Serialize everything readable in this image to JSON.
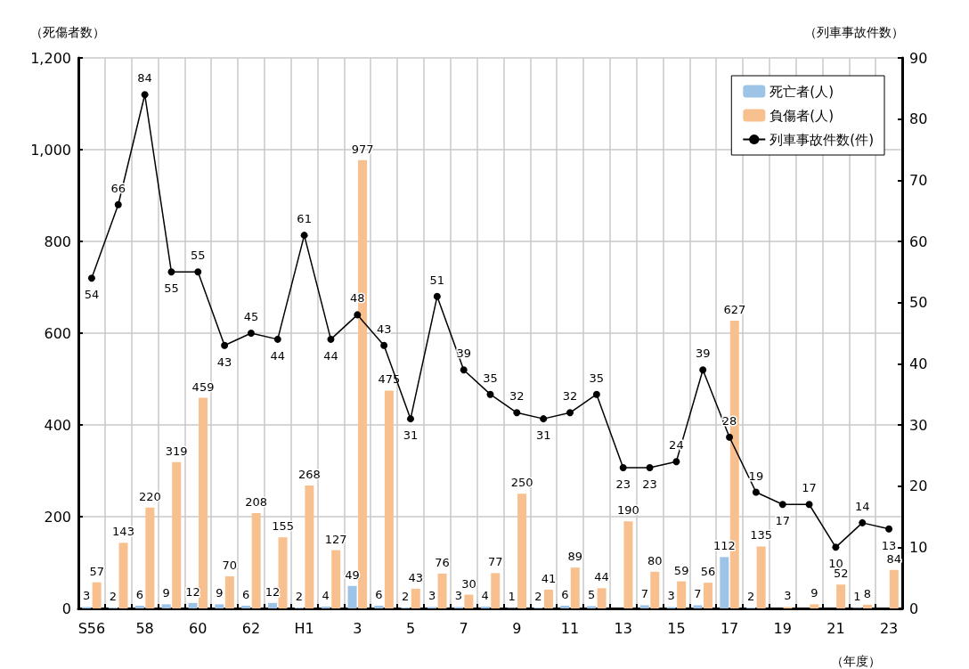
{
  "chart_data": {
    "type": "bar",
    "ylabel": "（死傷者数）",
    "y2label": "（列車事故件数）",
    "xlabel": "（年度）",
    "categories": [
      "S56",
      null,
      "58",
      null,
      "60",
      null,
      "62",
      null,
      "H1",
      null,
      "3",
      null,
      "5",
      null,
      "7",
      null,
      "9",
      null,
      "11",
      null,
      "13",
      null,
      "15",
      null,
      "17",
      null,
      "19",
      null,
      "21",
      null,
      "23"
    ],
    "series": [
      {
        "name": "死亡者(人)",
        "color": "#9dc3e6",
        "values": [
          3,
          2,
          6,
          9,
          12,
          9,
          6,
          12,
          2,
          4,
          49,
          6,
          2,
          3,
          3,
          4,
          1,
          2,
          6,
          5,
          null,
          7,
          3,
          7,
          112,
          2,
          null,
          null,
          null,
          1,
          null
        ]
      },
      {
        "name": "負傷者(人)",
        "color": "#f8c08e",
        "values": [
          57,
          143,
          220,
          319,
          459,
          70,
          208,
          155,
          268,
          127,
          977,
          475,
          43,
          76,
          30,
          77,
          250,
          41,
          89,
          44,
          190,
          80,
          59,
          56,
          627,
          135,
          3,
          9,
          52,
          8,
          84
        ]
      },
      {
        "name": "列車事故件数(件)",
        "type": "line",
        "axis": "y2",
        "color": "#000000",
        "values": [
          54,
          66,
          84,
          55,
          55,
          43,
          45,
          44,
          61,
          44,
          48,
          43,
          31,
          51,
          39,
          35,
          32,
          31,
          32,
          35,
          23,
          23,
          24,
          39,
          28,
          19,
          17,
          17,
          10,
          14,
          13
        ]
      }
    ],
    "ylim": [
      0,
      1200
    ],
    "yticks": [
      0,
      200,
      400,
      600,
      800,
      {
        "value": 1000,
        "label": "1,000"
      },
      {
        "value": 1200,
        "label": "1,200"
      }
    ],
    "y2lim": [
      0,
      90
    ],
    "y2ticks": [
      0,
      10,
      20,
      30,
      40,
      50,
      60,
      70,
      80,
      90
    ],
    "grid": true,
    "legend": "top right",
    "marker": "circle",
    "line_style": "solid",
    "data_labels": true
  }
}
